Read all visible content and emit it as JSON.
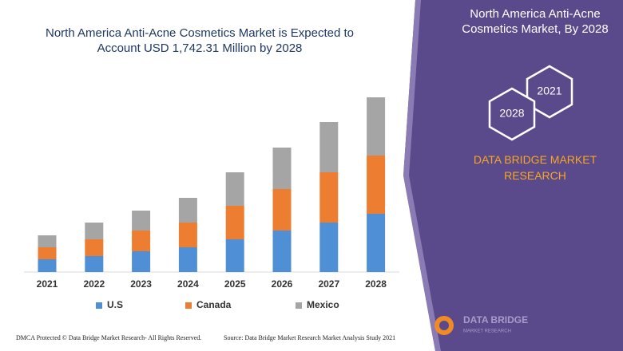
{
  "chart_data": {
    "type": "bar",
    "stacked": true,
    "title": "North America Anti-Acne Cosmetics Market is Expected to Account USD 1,742.31 Million by 2028",
    "categories": [
      "2021",
      "2022",
      "2023",
      "2024",
      "2025",
      "2026",
      "2027",
      "2028"
    ],
    "series": [
      {
        "name": "U.S",
        "color": "#4f8fd6",
        "values": [
          16,
          20,
          26,
          31,
          41,
          52,
          62,
          73
        ]
      },
      {
        "name": "Canada",
        "color": "#ed7d31",
        "values": [
          15,
          21,
          26,
          31,
          42,
          52,
          63,
          73
        ]
      },
      {
        "name": "Mexico",
        "color": "#a5a5a5",
        "values": [
          15,
          21,
          25,
          31,
          42,
          52,
          63,
          73
        ]
      }
    ],
    "legend": "bottom"
  },
  "panel": {
    "heading": "North America Anti-Acne Cosmetics Market, By 2028",
    "hex_labels": [
      "2021",
      "2028"
    ],
    "brand": "DATA BRIDGE MARKET RESEARCH"
  },
  "logo": {
    "name": "DATA BRIDGE",
    "tagline": "MARKET RESEARCH"
  },
  "footer": {
    "left": "DMCA Protected © Data Bridge Market Research- All Rights Reserved.",
    "right": "Source: Data Bridge Market Research Market Analysis Study 2021"
  }
}
